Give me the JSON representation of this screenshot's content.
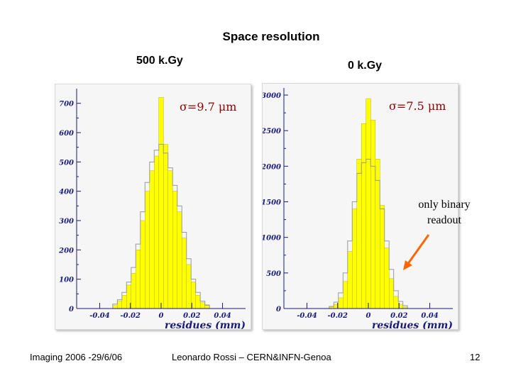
{
  "title": "Space resolution",
  "footer": {
    "left": "Imaging 2006 -29/6/06",
    "center": "Leonardo Rossi – CERN&INFN-Genoa",
    "right": "12"
  },
  "annotation": {
    "lines": [
      "only binary",
      "readout"
    ],
    "arrow_color": "#ff6600"
  },
  "colors": {
    "fill": "#ffff00",
    "fill_edge": "#a5a500",
    "outline": "#999999",
    "axis": "#1a1a7a",
    "sigma_text": "#8b0000"
  },
  "chart_data": [
    {
      "type": "histogram",
      "subtitle": "500 k.Gy",
      "annotation": "σ=9.7 μm",
      "xlabel": "residues (mm)",
      "xlim": [
        -0.055,
        0.055
      ],
      "ylim": [
        0,
        750
      ],
      "xticks": [
        -0.04,
        -0.02,
        0,
        0.02,
        0.04
      ],
      "xtick_labels": [
        "-0.04",
        "-0.02",
        "0",
        "0.02",
        "0.04"
      ],
      "yticks": [
        0,
        100,
        200,
        300,
        400,
        500,
        600,
        700
      ],
      "ytick_labels": [
        "0",
        "100",
        "200",
        "300",
        "400",
        "500",
        "600",
        "700"
      ],
      "series": [
        {
          "x": [
            -0.03,
            -0.027,
            -0.024,
            -0.021,
            -0.018,
            -0.015,
            -0.012,
            -0.009,
            -0.006,
            -0.003,
            0,
            0.003,
            0.006,
            0.009,
            0.012,
            0.015,
            0.018,
            0.021,
            0.024,
            0.027,
            0.03
          ],
          "y": [
            10,
            25,
            45,
            80,
            120,
            200,
            300,
            400,
            470,
            520,
            720,
            560,
            470,
            400,
            330,
            240,
            150,
            90,
            45,
            20,
            10
          ]
        },
        {
          "x": [
            -0.03,
            -0.027,
            -0.024,
            -0.021,
            -0.018,
            -0.015,
            -0.012,
            -0.009,
            -0.006,
            -0.003,
            0,
            0.003,
            0.006,
            0.009,
            0.012,
            0.015,
            0.018,
            0.021,
            0.024,
            0.027,
            0.03
          ],
          "y": [
            15,
            30,
            55,
            90,
            140,
            220,
            330,
            430,
            500,
            540,
            560,
            530,
            480,
            420,
            350,
            260,
            170,
            100,
            55,
            25,
            12
          ]
        }
      ]
    },
    {
      "type": "histogram",
      "subtitle": "0 k.Gy",
      "annotation": "σ=7.5 μm",
      "xlabel": "residues (mm)",
      "xlim": [
        -0.055,
        0.055
      ],
      "ylim": [
        0,
        3100
      ],
      "xticks": [
        -0.04,
        -0.02,
        0,
        0.02,
        0.04
      ],
      "xtick_labels": [
        "-0.04",
        "-0.02",
        "0",
        "0.02",
        "0.04"
      ],
      "yticks": [
        0,
        500,
        1000,
        1500,
        2000,
        2500,
        3000
      ],
      "ytick_labels": [
        "0",
        "500",
        "1000",
        "1500",
        "2000",
        "2500",
        "3000"
      ],
      "series": [
        {
          "x": [
            -0.024,
            -0.021,
            -0.018,
            -0.015,
            -0.012,
            -0.009,
            -0.006,
            -0.003,
            0,
            0.003,
            0.006,
            0.009,
            0.012,
            0.015,
            0.018,
            0.021,
            0.024
          ],
          "y": [
            20,
            60,
            150,
            380,
            800,
            1400,
            2100,
            2600,
            2950,
            2650,
            2100,
            1450,
            850,
            420,
            170,
            60,
            20
          ]
        },
        {
          "x": [
            -0.024,
            -0.021,
            -0.018,
            -0.015,
            -0.012,
            -0.009,
            -0.006,
            -0.003,
            0,
            0.003,
            0.006,
            0.009,
            0.012,
            0.015,
            0.018,
            0.021,
            0.024
          ],
          "y": [
            30,
            90,
            220,
            500,
            950,
            1500,
            1900,
            2050,
            2100,
            2000,
            1800,
            1400,
            950,
            550,
            250,
            100,
            40
          ]
        }
      ]
    }
  ]
}
